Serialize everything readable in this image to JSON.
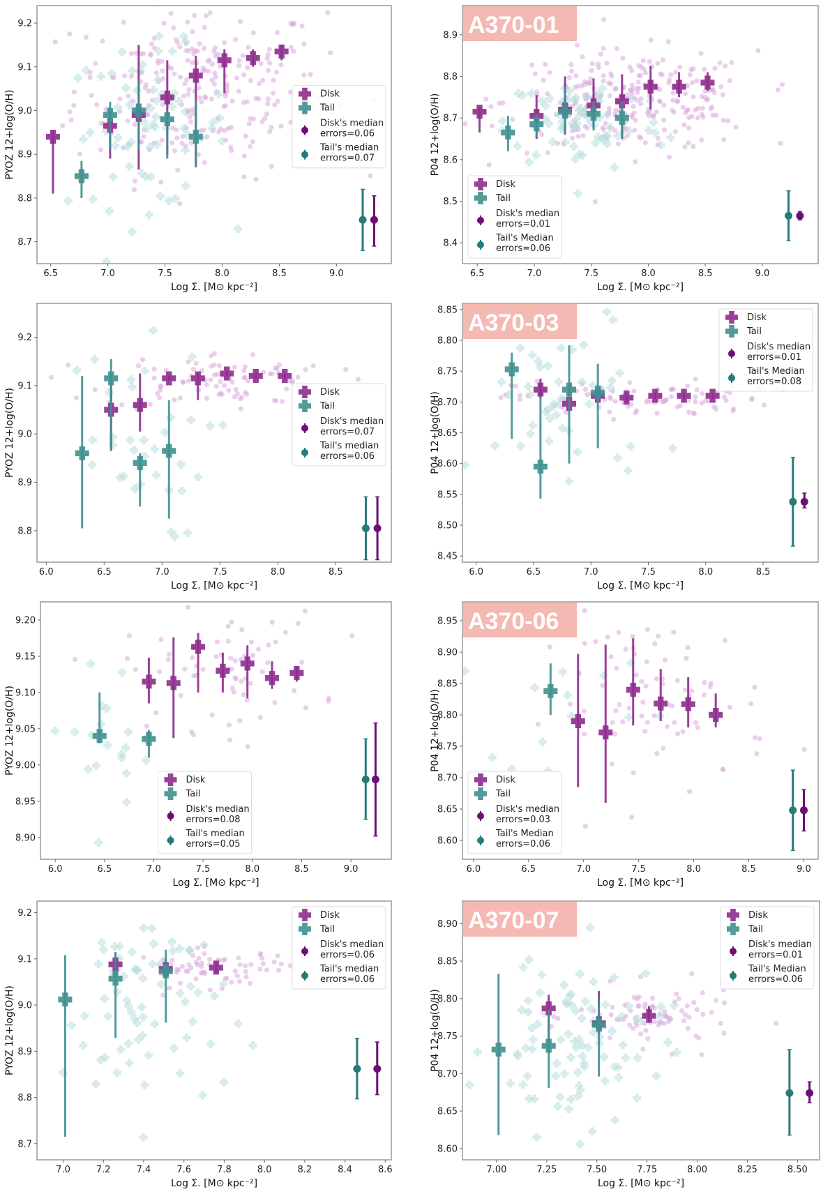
{
  "colors": {
    "disk": "#8e2c8e",
    "disk_median": "#6b0f73",
    "tail": "#3f9090",
    "tail_median": "#267a7a",
    "disk_scatter": "#d9a9dc",
    "tail_scatter": "#b8dcdc",
    "tag_bg": "#f4b9b2",
    "frame": "#9a9a9a"
  },
  "chart_data": [
    {
      "type": "scatter",
      "id": "p1",
      "ylabel": "PYOZ 12+log(O/H)",
      "xlabel": "Log Σ. [M⊙ kpc⁻²]",
      "xlim": [
        6.38,
        9.48
      ],
      "ylim": [
        8.65,
        9.24
      ],
      "xticks": [
        "6.5",
        "7.0",
        "7.5",
        "8.0",
        "8.5",
        "9.0"
      ],
      "yticks": [
        "8.7",
        "8.8",
        "8.9",
        "9.0",
        "9.1",
        "9.2"
      ],
      "tag": "",
      "legend": {
        "position": "center-right",
        "items": [
          "Disk",
          "Tail",
          "Disk's median\nerrors=0.06",
          "Tail's median\nerrors=0.07"
        ]
      },
      "disk": [
        [
          6.52,
          8.94,
          8.81,
          8.955
        ],
        [
          7.02,
          8.965,
          8.89,
          9.0
        ],
        [
          7.27,
          8.99,
          8.865,
          9.15
        ],
        [
          7.52,
          9.03,
          8.9,
          9.115
        ],
        [
          7.77,
          9.08,
          8.87,
          9.125
        ],
        [
          8.02,
          9.115,
          9.04,
          9.14
        ],
        [
          8.27,
          9.12,
          9.1,
          9.14
        ],
        [
          8.52,
          9.135,
          9.115,
          9.15
        ]
      ],
      "tail": [
        [
          6.77,
          8.85,
          8.8,
          8.885
        ],
        [
          7.02,
          8.99,
          8.91,
          9.02
        ],
        [
          7.27,
          9.0,
          8.91,
          9.07
        ],
        [
          7.52,
          8.98,
          8.89,
          9.0
        ],
        [
          7.77,
          8.94,
          8.87,
          9.02
        ]
      ],
      "median_err": {
        "tail": [
          9.23,
          8.75,
          8.68,
          8.82
        ],
        "disk": [
          9.33,
          8.75,
          8.69,
          8.805
        ]
      },
      "disk_scatter_center": [
        7.8,
        9.05
      ],
      "disk_scatter_spread": [
        0.55,
        0.1
      ],
      "disk_scatter_n": 260,
      "tail_scatter_center": [
        7.35,
        8.96
      ],
      "tail_scatter_spread": [
        0.35,
        0.09
      ],
      "tail_scatter_n": 70
    },
    {
      "type": "scatter",
      "id": "p2",
      "ylabel": "P04 12+log(O/H)",
      "xlabel": "Log Σ. [M⊙ kpc⁻²]",
      "xlim": [
        6.37,
        9.49
      ],
      "ylim": [
        8.35,
        8.97
      ],
      "xticks": [
        "6.5",
        "7.0",
        "7.5",
        "8.0",
        "8.5",
        "9.0"
      ],
      "yticks": [
        "8.4",
        "8.5",
        "8.6",
        "8.7",
        "8.8",
        "8.9"
      ],
      "tag": "A370-01",
      "legend": {
        "position": "lower-left",
        "items": [
          "Disk",
          "Tail",
          "Disk's median\nerrors=0.01",
          "Tail's Median\nerrors=0.06"
        ]
      },
      "disk": [
        [
          6.52,
          8.715,
          8.665,
          8.725
        ],
        [
          7.02,
          8.705,
          8.65,
          8.755
        ],
        [
          7.27,
          8.72,
          8.66,
          8.8
        ],
        [
          7.52,
          8.73,
          8.675,
          8.795
        ],
        [
          7.77,
          8.74,
          8.65,
          8.805
        ],
        [
          8.02,
          8.775,
          8.72,
          8.825
        ],
        [
          8.27,
          8.775,
          8.75,
          8.81
        ],
        [
          8.52,
          8.785,
          8.765,
          8.81
        ]
      ],
      "tail": [
        [
          6.77,
          8.665,
          8.62,
          8.705
        ],
        [
          7.02,
          8.685,
          8.655,
          8.71
        ],
        [
          7.27,
          8.715,
          8.665,
          8.775
        ],
        [
          7.52,
          8.71,
          8.67,
          8.74
        ],
        [
          7.77,
          8.7,
          8.65,
          8.74
        ]
      ],
      "median_err": {
        "tail": [
          9.23,
          8.465,
          8.405,
          8.525
        ],
        "disk": [
          9.33,
          8.465,
          8.455,
          8.475
        ]
      },
      "disk_scatter_center": [
        7.85,
        8.74
      ],
      "disk_scatter_spread": [
        0.55,
        0.06
      ],
      "disk_scatter_n": 260,
      "tail_scatter_center": [
        7.45,
        8.69
      ],
      "tail_scatter_spread": [
        0.35,
        0.06
      ],
      "tail_scatter_n": 70
    },
    {
      "type": "scatter",
      "id": "p3",
      "ylabel": "PYOZ 12+log(O/H)",
      "xlabel": "Log Σ. [M⊙ kpc⁻²]",
      "xlim": [
        5.92,
        8.98
      ],
      "ylim": [
        8.735,
        9.27
      ],
      "xticks": [
        "6.0",
        "6.5",
        "7.0",
        "7.5",
        "8.0",
        "8.5"
      ],
      "yticks": [
        "8.8",
        "8.9",
        "9.0",
        "9.1",
        "9.2"
      ],
      "tag": "",
      "legend": {
        "position": "center-right",
        "items": [
          "Disk",
          "Tail",
          "Disk's median\nerrors=0.07",
          "Tail's median\nerrors=0.06"
        ]
      },
      "disk": [
        [
          6.56,
          9.05,
          8.965,
          9.1
        ],
        [
          6.81,
          9.06,
          9.005,
          9.125
        ],
        [
          7.06,
          9.115,
          9.11,
          9.12
        ],
        [
          7.31,
          9.115,
          9.07,
          9.125
        ],
        [
          7.56,
          9.125,
          9.12,
          9.13
        ],
        [
          7.81,
          9.12,
          9.115,
          9.125
        ],
        [
          8.06,
          9.12,
          9.115,
          9.125
        ]
      ],
      "tail": [
        [
          6.31,
          8.96,
          8.805,
          9.12
        ],
        [
          6.56,
          9.115,
          8.965,
          9.155
        ],
        [
          6.81,
          8.94,
          8.85,
          8.96
        ],
        [
          7.06,
          8.965,
          8.825,
          9.07
        ]
      ],
      "median_err": {
        "tail": [
          8.76,
          8.805,
          8.74,
          8.87
        ],
        "disk": [
          8.86,
          8.805,
          8.74,
          8.87
        ]
      },
      "disk_scatter_center": [
        7.5,
        9.11
      ],
      "disk_scatter_spread": [
        0.5,
        0.03
      ],
      "disk_scatter_n": 90,
      "tail_scatter_center": [
        6.7,
        8.98
      ],
      "tail_scatter_spread": [
        0.35,
        0.1
      ],
      "tail_scatter_n": 35
    },
    {
      "type": "scatter",
      "id": "p4",
      "ylabel": "P04 12+log(O/H)",
      "xlabel": "Log Σ. [M⊙ kpc⁻²]",
      "xlim": [
        5.88,
        8.98
      ],
      "ylim": [
        8.44,
        8.86
      ],
      "xticks": [
        "6.0",
        "6.5",
        "7.0",
        "7.5",
        "8.0",
        "8.5"
      ],
      "yticks": [
        "8.45",
        "8.50",
        "8.55",
        "8.60",
        "8.65",
        "8.70",
        "8.75",
        "8.80",
        "8.85"
      ],
      "tag": "A370-03",
      "legend": {
        "position": "upper-right",
        "items": [
          "Disk",
          "Tail",
          "Disk's median\nerrors=0.01",
          "Tail's Median\nerrors=0.08"
        ]
      },
      "disk": [
        [
          6.56,
          8.72,
          8.705,
          8.738
        ],
        [
          6.81,
          8.697,
          8.69,
          8.705
        ],
        [
          7.06,
          8.71,
          8.705,
          8.72
        ],
        [
          7.31,
          8.707,
          8.7,
          8.712
        ],
        [
          7.56,
          8.71,
          8.705,
          8.715
        ],
        [
          7.81,
          8.71,
          8.705,
          8.715
        ],
        [
          8.06,
          8.71,
          8.705,
          8.715
        ]
      ],
      "tail": [
        [
          6.31,
          8.753,
          8.64,
          8.78
        ],
        [
          6.56,
          8.595,
          8.543,
          8.71
        ],
        [
          6.81,
          8.72,
          8.6,
          8.792
        ],
        [
          7.06,
          8.715,
          8.625,
          8.762
        ]
      ],
      "median_err": {
        "tail": [
          8.76,
          8.538,
          8.466,
          8.61
        ],
        "disk": [
          8.86,
          8.538,
          8.528,
          8.552
        ]
      },
      "disk_scatter_center": [
        7.45,
        8.705
      ],
      "disk_scatter_spread": [
        0.55,
        0.015
      ],
      "disk_scatter_n": 90,
      "tail_scatter_center": [
        6.8,
        8.7
      ],
      "tail_scatter_spread": [
        0.4,
        0.08
      ],
      "tail_scatter_n": 45
    },
    {
      "type": "scatter",
      "id": "p5",
      "ylabel": "PYOZ 12+log(O/H)",
      "xlabel": "Log Σ. [M⊙ kpc⁻²]",
      "xlim": [
        5.85,
        9.41
      ],
      "ylim": [
        8.87,
        9.225
      ],
      "xticks": [
        "6.0",
        "6.5",
        "7.0",
        "7.5",
        "8.0",
        "8.5",
        "9.0"
      ],
      "yticks": [
        "8.90",
        "8.95",
        "9.00",
        "9.05",
        "9.10",
        "9.15",
        "9.20"
      ],
      "tag": "",
      "legend": {
        "position": "lower-center",
        "items": [
          "Disk",
          "Tail",
          "Disk's median\nerrors=0.08",
          "Tail's median\nerrors=0.05"
        ]
      },
      "disk": [
        [
          6.95,
          9.115,
          9.085,
          9.148
        ],
        [
          7.2,
          9.113,
          9.037,
          9.176
        ],
        [
          7.45,
          9.163,
          9.1,
          9.182
        ],
        [
          7.7,
          9.13,
          9.1,
          9.155
        ],
        [
          7.95,
          9.14,
          9.092,
          9.165
        ],
        [
          8.2,
          9.12,
          9.105,
          9.143
        ],
        [
          8.45,
          9.127,
          9.115,
          9.135
        ]
      ],
      "tail": [
        [
          6.45,
          9.04,
          9.03,
          9.1
        ],
        [
          6.95,
          9.036,
          9.01,
          9.048
        ]
      ],
      "median_err": {
        "tail": [
          9.15,
          8.98,
          8.925,
          9.036
        ],
        "disk": [
          9.25,
          8.98,
          8.902,
          9.058
        ]
      },
      "disk_scatter_center": [
        7.7,
        9.13
      ],
      "disk_scatter_spread": [
        0.5,
        0.04
      ],
      "disk_scatter_n": 70,
      "tail_scatter_center": [
        6.6,
        9.05
      ],
      "tail_scatter_spread": [
        0.35,
        0.05
      ],
      "tail_scatter_n": 20
    },
    {
      "type": "scatter",
      "id": "p6",
      "ylabel": "P04 12+log(O/H)",
      "xlabel": "Log Σ. [M⊙ kpc⁻²]",
      "xlim": [
        5.9,
        9.13
      ],
      "ylim": [
        8.57,
        8.98
      ],
      "xticks": [
        "6.0",
        "6.5",
        "7.0",
        "7.5",
        "8.0",
        "8.5",
        "9.0"
      ],
      "yticks": [
        "8.60",
        "8.65",
        "8.70",
        "8.75",
        "8.80",
        "8.85",
        "8.90",
        "8.95"
      ],
      "tag": "A370-06",
      "legend": {
        "position": "lower-left",
        "items": [
          "Disk",
          "Tail",
          "Disk's median\nerrors=0.03",
          "Tail's Median\nerrors=0.06"
        ]
      },
      "disk": [
        [
          6.95,
          8.79,
          8.685,
          8.897
        ],
        [
          7.2,
          8.772,
          8.66,
          8.912
        ],
        [
          7.45,
          8.84,
          8.783,
          8.922
        ],
        [
          7.7,
          8.818,
          8.79,
          8.873
        ],
        [
          7.95,
          8.817,
          8.78,
          8.86
        ],
        [
          8.2,
          8.8,
          8.78,
          8.834
        ]
      ],
      "tail": [
        [
          6.7,
          8.838,
          8.8,
          8.882
        ]
      ],
      "median_err": {
        "tail": [
          8.9,
          8.648,
          8.584,
          8.712
        ],
        "disk": [
          9.0,
          8.648,
          8.615,
          8.681
        ]
      },
      "disk_scatter_center": [
        7.7,
        8.82
      ],
      "disk_scatter_spread": [
        0.5,
        0.07
      ],
      "disk_scatter_n": 80,
      "tail_scatter_center": [
        6.8,
        8.82
      ],
      "tail_scatter_spread": [
        0.5,
        0.05
      ],
      "tail_scatter_n": 14
    },
    {
      "type": "scatter",
      "id": "p7",
      "ylabel": "PYOZ 12+log(O/H)",
      "xlabel": "Log Σ. [M⊙ kpc⁻²]",
      "xlim": [
        6.87,
        8.63
      ],
      "ylim": [
        8.665,
        9.225
      ],
      "xticks": [
        "7.0",
        "7.2",
        "7.4",
        "7.6",
        "7.8",
        "8.0",
        "8.2",
        "8.4",
        "8.6"
      ],
      "yticks": [
        "8.7",
        "8.8",
        "8.9",
        "9.0",
        "9.1",
        "9.2"
      ],
      "tag": "",
      "legend": {
        "position": "upper-right",
        "items": [
          "Disk",
          "Tail",
          "Disk's median\nerrors=0.06",
          "Tail's median\nerrors=0.06"
        ]
      },
      "disk": [
        [
          7.26,
          9.088,
          9.07,
          9.112
        ],
        [
          7.51,
          9.078,
          9.06,
          9.1
        ],
        [
          7.76,
          9.081,
          9.07,
          9.09
        ]
      ],
      "tail": [
        [
          7.01,
          9.012,
          8.715,
          9.108
        ],
        [
          7.26,
          9.057,
          8.929,
          9.115
        ],
        [
          7.51,
          9.073,
          8.962,
          9.12
        ]
      ],
      "median_err": {
        "tail": [
          8.46,
          8.862,
          8.797,
          8.928
        ],
        "disk": [
          8.56,
          8.862,
          8.806,
          8.92
        ]
      },
      "disk_scatter_center": [
        7.75,
        9.08
      ],
      "disk_scatter_spread": [
        0.2,
        0.02
      ],
      "disk_scatter_n": 70,
      "tail_scatter_center": [
        7.4,
        9.0
      ],
      "tail_scatter_spread": [
        0.2,
        0.12
      ],
      "tail_scatter_n": 70
    },
    {
      "type": "scatter",
      "id": "p8",
      "ylabel": "P04 12+log(O/H)",
      "xlabel": "Log Σ. [M⊙ kpc⁻²]",
      "xlim": [
        6.83,
        8.61
      ],
      "ylim": [
        8.585,
        8.93
      ],
      "xticks": [
        "7.00",
        "7.25",
        "7.50",
        "7.75",
        "8.00",
        "8.25",
        "8.50"
      ],
      "yticks": [
        "8.60",
        "8.65",
        "8.70",
        "8.75",
        "8.80",
        "8.85",
        "8.90"
      ],
      "tag": "A370-07",
      "legend": {
        "position": "upper-right",
        "items": [
          "Disk",
          "Tail",
          "Disk's median\nerrors=0.01",
          "Tail's Median\nerrors=0.06"
        ]
      },
      "disk": [
        [
          7.26,
          8.787,
          8.745,
          8.805
        ],
        [
          7.51,
          8.767,
          8.752,
          8.81
        ],
        [
          7.76,
          8.777,
          8.768,
          8.79
        ]
      ],
      "tail": [
        [
          7.01,
          8.732,
          8.618,
          8.833
        ],
        [
          7.26,
          8.737,
          8.681,
          8.785
        ],
        [
          7.51,
          8.765,
          8.696,
          8.8
        ]
      ],
      "median_err": {
        "tail": [
          8.46,
          8.674,
          8.618,
          8.732
        ],
        "disk": [
          8.56,
          8.674,
          8.661,
          8.689
        ]
      },
      "disk_scatter_center": [
        7.8,
        8.775
      ],
      "disk_scatter_spread": [
        0.2,
        0.02
      ],
      "disk_scatter_n": 80,
      "tail_scatter_center": [
        7.4,
        8.74
      ],
      "tail_scatter_spread": [
        0.22,
        0.06
      ],
      "tail_scatter_n": 90
    }
  ]
}
